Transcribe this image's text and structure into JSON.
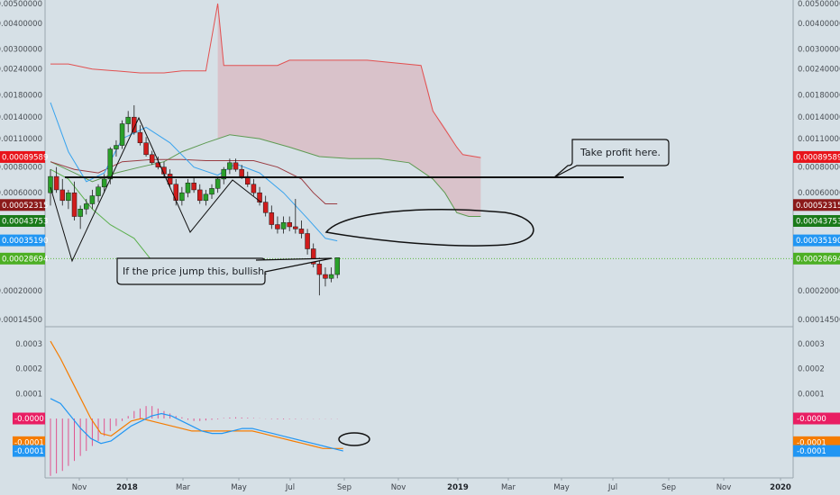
{
  "chart_data": [
    {
      "type": "candlestick",
      "y_scale": "log",
      "ylim": [
        0.000145,
        0.0051
      ],
      "y_ticks": [
        "0.00500000",
        "0.00400000",
        "0.00300000",
        "0.00240000",
        "0.00180000",
        "0.00140000",
        "0.00110000",
        "0.00080000",
        "0.00060000",
        "0.00020000",
        "0.00014500"
      ],
      "x_ticks": [
        "Nov",
        "2018",
        "Mar",
        "May",
        "Jul",
        "Sep",
        "Nov",
        "2019",
        "Mar",
        "May",
        "Jul",
        "Sep",
        "Nov",
        "2020"
      ],
      "x_ticks_bold": [
        "2018",
        "2019",
        "2020"
      ],
      "price_badges": [
        {
          "label": "0.00089589",
          "value": 0.00089589,
          "color": "#e8141b"
        },
        {
          "label": "0.00052315",
          "value": 0.00052315,
          "color": "#8b1a1a"
        },
        {
          "label": "0.00043753",
          "value": 0.00043753,
          "color": "#1a7a1a"
        },
        {
          "label": "0.00035190",
          "value": 0.0003519,
          "color": "#2196f3"
        },
        {
          "label": "0.00028694",
          "value": 0.00028694,
          "color": "#4caf24"
        }
      ],
      "candles": [
        [
          0.0006,
          0.00078,
          0.00052,
          0.00072
        ],
        [
          0.00072,
          0.0008,
          0.0006,
          0.00062
        ],
        [
          0.00062,
          0.0007,
          0.00052,
          0.00055
        ],
        [
          0.00055,
          0.00062,
          0.0005,
          0.0006
        ],
        [
          0.0006,
          0.00068,
          0.00044,
          0.00046
        ],
        [
          0.00046,
          0.00052,
          0.0004,
          0.0005
        ],
        [
          0.0005,
          0.00056,
          0.00047,
          0.00053
        ],
        [
          0.00053,
          0.00062,
          0.0005,
          0.00058
        ],
        [
          0.00058,
          0.00066,
          0.00054,
          0.00064
        ],
        [
          0.00064,
          0.00074,
          0.0006,
          0.0007
        ],
        [
          0.0007,
          0.001,
          0.00066,
          0.00098
        ],
        [
          0.00098,
          0.00108,
          0.0009,
          0.00102
        ],
        [
          0.00102,
          0.00135,
          0.00098,
          0.0013
        ],
        [
          0.0013,
          0.0015,
          0.00118,
          0.0014
        ],
        [
          0.0014,
          0.0016,
          0.00115,
          0.00118
        ],
        [
          0.00118,
          0.00128,
          0.00102,
          0.00105
        ],
        [
          0.00105,
          0.00112,
          0.0009,
          0.00092
        ],
        [
          0.00092,
          0.00096,
          0.00082,
          0.00084
        ],
        [
          0.00084,
          0.0009,
          0.00078,
          0.0008
        ],
        [
          0.0008,
          0.00085,
          0.00072,
          0.00074
        ],
        [
          0.00074,
          0.00078,
          0.00064,
          0.00066
        ],
        [
          0.00066,
          0.0007,
          0.00052,
          0.00055
        ],
        [
          0.00055,
          0.00064,
          0.00052,
          0.0006
        ],
        [
          0.0006,
          0.0007,
          0.00057,
          0.00067
        ],
        [
          0.00067,
          0.00072,
          0.0006,
          0.00062
        ],
        [
          0.00062,
          0.00066,
          0.00053,
          0.00055
        ],
        [
          0.00055,
          0.00062,
          0.00052,
          0.00059
        ],
        [
          0.00059,
          0.00066,
          0.00056,
          0.00063
        ],
        [
          0.00063,
          0.00072,
          0.0006,
          0.0007
        ],
        [
          0.0007,
          0.0008,
          0.00066,
          0.00078
        ],
        [
          0.00078,
          0.00088,
          0.00074,
          0.00084
        ],
        [
          0.00084,
          0.00088,
          0.00076,
          0.00078
        ],
        [
          0.00078,
          0.00082,
          0.0007,
          0.00072
        ],
        [
          0.00072,
          0.00076,
          0.00064,
          0.00066
        ],
        [
          0.00066,
          0.0007,
          0.00058,
          0.0006
        ],
        [
          0.0006,
          0.00064,
          0.00052,
          0.00054
        ],
        [
          0.00054,
          0.00058,
          0.00046,
          0.00048
        ],
        [
          0.00048,
          0.00052,
          0.0004,
          0.00042
        ],
        [
          0.00042,
          0.00046,
          0.00038,
          0.0004
        ],
        [
          0.0004,
          0.00046,
          0.00038,
          0.00043
        ],
        [
          0.00043,
          0.00046,
          0.00039,
          0.00041
        ],
        [
          0.00041,
          0.00056,
          0.00038,
          0.0004
        ],
        [
          0.0004,
          0.00044,
          0.00036,
          0.00038
        ],
        [
          0.00038,
          0.0004,
          0.0003,
          0.00032
        ],
        [
          0.00032,
          0.00034,
          0.00026,
          0.00027
        ],
        [
          0.00027,
          0.00029,
          0.00019,
          0.00024
        ],
        [
          0.00024,
          0.00026,
          0.00021,
          0.00023
        ],
        [
          0.00023,
          0.00026,
          0.00022,
          0.00024
        ],
        [
          0.00024,
          0.00029,
          0.00023,
          0.00029
        ]
      ],
      "kijun": [
        [
          0,
          0.00085
        ],
        [
          4,
          0.00078
        ],
        [
          8,
          0.00075
        ],
        [
          12,
          0.00085
        ],
        [
          17,
          0.00087
        ],
        [
          22,
          0.00087
        ],
        [
          26,
          0.00086
        ],
        [
          30,
          0.00086
        ],
        [
          34,
          0.00086
        ],
        [
          38,
          0.0008
        ],
        [
          42,
          0.0007
        ],
        [
          44,
          0.0006
        ],
        [
          46,
          0.00053
        ],
        [
          48,
          0.00053
        ]
      ],
      "tenkan": [
        [
          0,
          0.00165
        ],
        [
          3,
          0.00095
        ],
        [
          6,
          0.00068
        ],
        [
          9,
          0.00075
        ],
        [
          12,
          0.0011
        ],
        [
          16,
          0.00125
        ],
        [
          20,
          0.00105
        ],
        [
          24,
          0.0008
        ],
        [
          28,
          0.00073
        ],
        [
          31,
          0.00083
        ],
        [
          35,
          0.00075
        ],
        [
          39,
          0.0006
        ],
        [
          43,
          0.00045
        ],
        [
          46,
          0.00036
        ],
        [
          48,
          0.00035
        ]
      ],
      "chikou": [
        [
          0,
          0.00078
        ],
        [
          3,
          0.0007
        ],
        [
          7,
          0.0005
        ],
        [
          10,
          0.00042
        ],
        [
          14,
          0.00036
        ],
        [
          17,
          0.00028
        ],
        [
          21,
          0.00026
        ],
        [
          23,
          0.00028
        ]
      ],
      "span_a": [
        [
          0,
          0.00085
        ],
        [
          4,
          0.00075
        ],
        [
          7,
          0.00068
        ],
        [
          11,
          0.00075
        ],
        [
          15,
          0.0008
        ],
        [
          19,
          0.00085
        ],
        [
          22,
          0.00095
        ],
        [
          26,
          0.00105
        ],
        [
          30,
          0.00115
        ],
        [
          35,
          0.0011
        ],
        [
          40,
          0.001
        ],
        [
          45,
          0.0009
        ],
        [
          50,
          0.00088
        ],
        [
          55,
          0.00088
        ],
        [
          60,
          0.00084
        ],
        [
          64,
          0.0007
        ],
        [
          66,
          0.0006
        ],
        [
          68,
          0.00048
        ],
        [
          70,
          0.00046
        ],
        [
          72,
          0.00046
        ]
      ],
      "span_b": [
        [
          0,
          0.00254
        ],
        [
          3,
          0.00254
        ],
        [
          7,
          0.0024
        ],
        [
          11,
          0.00235
        ],
        [
          15,
          0.0023
        ],
        [
          19,
          0.0023
        ],
        [
          22,
          0.00235
        ],
        [
          26,
          0.00235
        ],
        [
          28,
          0.005
        ],
        [
          29,
          0.0025
        ],
        [
          38,
          0.0025
        ],
        [
          40,
          0.00265
        ],
        [
          53,
          0.00265
        ],
        [
          62,
          0.0025
        ],
        [
          64,
          0.0015
        ],
        [
          68,
          0.001
        ],
        [
          69,
          0.00092
        ],
        [
          72,
          0.00089
        ]
      ],
      "cloud_red_from_index": 28,
      "dashed_level": 0.00028694
    },
    {
      "type": "macd",
      "ylim": [
        -0.00022,
        0.00035
      ],
      "y_ticks": [
        "0.0003",
        "0.0002",
        "0.0001"
      ],
      "badges": [
        {
          "label": "-0.0000",
          "value": 0.0,
          "color": "#e91e63"
        },
        {
          "label": "-0.0001",
          "value": -9.5e-05,
          "color": "#f57c00"
        },
        {
          "label": "-0.0001",
          "value": -0.00013,
          "color": "#2196f3"
        }
      ],
      "macd_line": [
        [
          0,
          8e-05
        ],
        [
          1,
          6e-05
        ],
        [
          2,
          1e-05
        ],
        [
          3,
          -4e-05
        ],
        [
          4,
          -8e-05
        ],
        [
          5,
          -0.0001
        ],
        [
          6,
          -9e-05
        ],
        [
          7,
          -6e-05
        ],
        [
          8,
          -3e-05
        ],
        [
          9,
          -1e-05
        ],
        [
          10,
          1e-05
        ],
        [
          11,
          2e-05
        ],
        [
          12,
          1e-05
        ],
        [
          13,
          -1e-05
        ],
        [
          14,
          -3e-05
        ],
        [
          15,
          -5e-05
        ],
        [
          16,
          -6e-05
        ],
        [
          17,
          -6e-05
        ],
        [
          18,
          -5e-05
        ],
        [
          19,
          -4e-05
        ],
        [
          20,
          -4e-05
        ],
        [
          21,
          -5e-05
        ],
        [
          22,
          -6e-05
        ],
        [
          23,
          -7e-05
        ],
        [
          24,
          -8e-05
        ],
        [
          25,
          -9e-05
        ],
        [
          26,
          -0.0001
        ],
        [
          27,
          -0.00011
        ],
        [
          28,
          -0.00012
        ],
        [
          29,
          -0.00013
        ]
      ],
      "signal_line": [
        [
          0,
          0.00031
        ],
        [
          1,
          0.00024
        ],
        [
          2,
          0.00016
        ],
        [
          3,
          8e-05
        ],
        [
          4,
          0.0
        ],
        [
          5,
          -6e-05
        ],
        [
          6,
          -7e-05
        ],
        [
          7,
          -4e-05
        ],
        [
          8,
          -1e-05
        ],
        [
          9,
          0.0
        ],
        [
          10,
          -1e-05
        ],
        [
          11,
          -2e-05
        ],
        [
          12,
          -3e-05
        ],
        [
          13,
          -4e-05
        ],
        [
          14,
          -5e-05
        ],
        [
          15,
          -5e-05
        ],
        [
          16,
          -5e-05
        ],
        [
          17,
          -5e-05
        ],
        [
          18,
          -5e-05
        ],
        [
          19,
          -5e-05
        ],
        [
          20,
          -5e-05
        ],
        [
          21,
          -6e-05
        ],
        [
          22,
          -7e-05
        ],
        [
          23,
          -8e-05
        ],
        [
          24,
          -9e-05
        ],
        [
          25,
          -0.0001
        ],
        [
          26,
          -0.00011
        ],
        [
          27,
          -0.00012
        ],
        [
          28,
          -0.00012
        ],
        [
          29,
          -0.00012
        ]
      ],
      "histogram_x_span": [
        0,
        48
      ],
      "histogram": [
        -0.00023,
        -0.00022,
        -0.00021,
        -0.00019,
        -0.00017,
        -0.00015,
        -0.00013,
        -0.00011,
        -9e-05,
        -7e-05,
        -5e-05,
        -3e-05,
        -1e-05,
        1e-05,
        3e-05,
        4e-05,
        5e-05,
        5e-05,
        4e-05,
        3e-05,
        2e-05,
        1e-05,
        5e-06,
        -5e-06,
        -1e-05,
        -1e-05,
        -8e-06,
        -5e-06,
        -3e-06,
        2e-06,
        4e-06,
        5e-06,
        4e-06,
        3e-06,
        2e-06,
        1e-06,
        -1e-06,
        -2e-06,
        -3e-06,
        -3e-06,
        -2e-06,
        -2e-06,
        -1e-06,
        -1e-06,
        -1e-06,
        -1e-06,
        -1e-06,
        -1e-06,
        -1e-06
      ]
    }
  ],
  "annotations": {
    "take_profit": "Take profit here.",
    "bullish": "If the price jump this, bullish."
  },
  "colors": {
    "background": "#d6e0e6",
    "candle_up": "#2aa02a",
    "candle_down": "#d01c1c",
    "cloud_red": "rgba(228,120,130,0.28)",
    "tenkan": "#38a3ee",
    "kijun": "#9a3c42",
    "chikou": "#5cb04e",
    "span_a": "#5e9a52",
    "span_b": "#e25050",
    "macd": "#2196f3",
    "signal": "#f57c00",
    "histogram": "#e0528e"
  }
}
